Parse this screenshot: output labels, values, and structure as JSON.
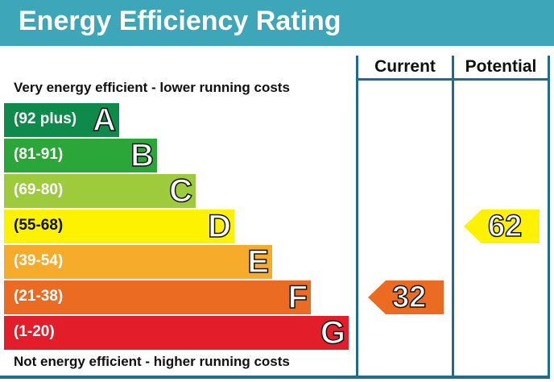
{
  "title": "Energy Efficiency Rating",
  "top_caption": "Very energy efficient - lower running costs",
  "bottom_caption": "Not energy efficient - higher running costs",
  "columns": {
    "current": "Current",
    "potential": "Potential"
  },
  "chart_data": {
    "type": "bar",
    "categories": [
      "A",
      "B",
      "C",
      "D",
      "E",
      "F",
      "G"
    ],
    "bands": [
      {
        "letter": "A",
        "range": "(92 plus)",
        "color": "#0e8a4a"
      },
      {
        "letter": "B",
        "range": "(81-91)",
        "color": "#2ba638"
      },
      {
        "letter": "C",
        "range": "(69-80)",
        "color": "#9ecb3c"
      },
      {
        "letter": "D",
        "range": "(55-68)",
        "color": "#fff200"
      },
      {
        "letter": "E",
        "range": "(39-54)",
        "color": "#f7ab2a"
      },
      {
        "letter": "F",
        "range": "(21-38)",
        "color": "#ec6b23"
      },
      {
        "letter": "G",
        "range": "(1-20)",
        "color": "#e41d2b"
      }
    ],
    "current": {
      "value": 32,
      "band": "F",
      "color": "#ec6b23"
    },
    "potential": {
      "value": 62,
      "band": "D",
      "color": "#fff200"
    }
  }
}
